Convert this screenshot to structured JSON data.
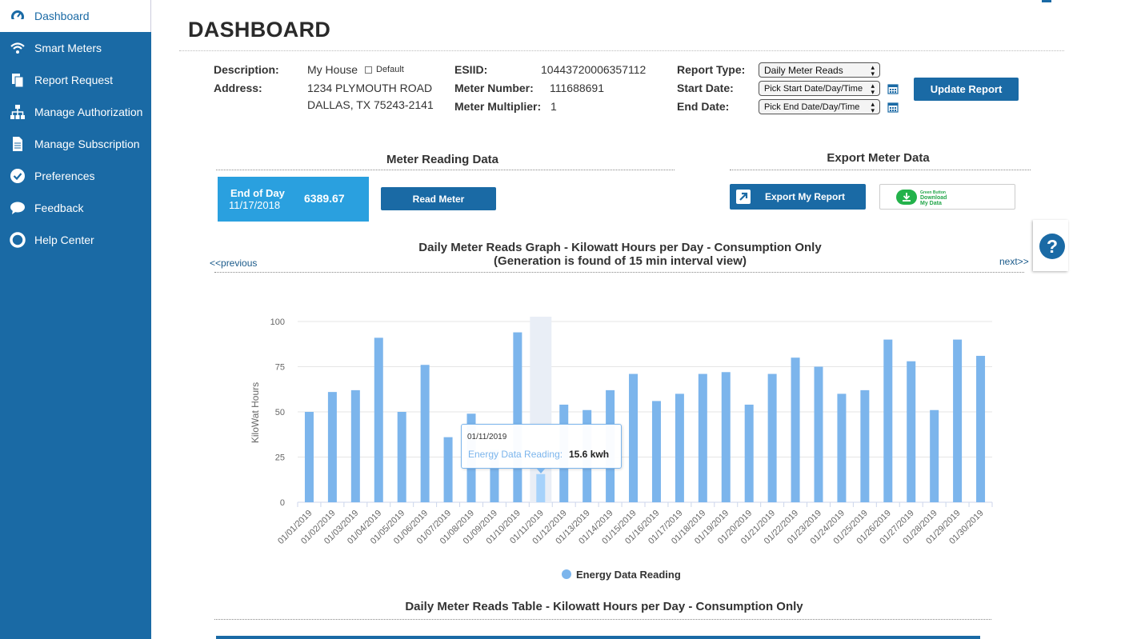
{
  "sidebar": {
    "items": [
      {
        "label": "Dashboard",
        "icon": "dashboard-icon"
      },
      {
        "label": "Smart Meters",
        "icon": "wifi-icon"
      },
      {
        "label": "Report Request",
        "icon": "report-icon"
      },
      {
        "label": "Manage Authorization",
        "icon": "sitemap-icon"
      },
      {
        "label": "Manage Subscription",
        "icon": "document-icon"
      },
      {
        "label": "Preferences",
        "icon": "check-circle-icon"
      },
      {
        "label": "Feedback",
        "icon": "chat-icon"
      },
      {
        "label": "Help Center",
        "icon": "lifebuoy-icon"
      }
    ]
  },
  "header": {
    "title": "DASHBOARD"
  },
  "details": {
    "description_label": "Description:",
    "description_value": "My House",
    "default_label": "Default",
    "address_label": "Address:",
    "address_line1": "1234 PLYMOUTH ROAD",
    "address_line2": "DALLAS, TX 75243-2141",
    "esiid_label": "ESIID:",
    "esiid_value": "10443720006357112",
    "meter_number_label": "Meter Number:",
    "meter_number_value": "111688691",
    "meter_multiplier_label": "Meter Multiplier:",
    "meter_multiplier_value": "1",
    "report_type_label": "Report Type:",
    "report_type_value": "Daily Meter Reads",
    "start_date_label": "Start Date:",
    "start_date_value": "Pick Start Date/Day/Time",
    "end_date_label": "End Date:",
    "end_date_value": "Pick End Date/Day/Time",
    "update_button": "Update Report"
  },
  "meter_reading": {
    "title": "Meter Reading Data",
    "eod_label": "End of Day",
    "eod_date": "11/17/2018",
    "eod_value": "6389.67",
    "read_button": "Read Meter"
  },
  "export": {
    "title": "Export Meter Data",
    "export_button": "Export My Report",
    "green_button_line1": "Green Button",
    "green_button_line2": "Download",
    "green_button_line3": "My Data"
  },
  "graph": {
    "title_line1": "Daily Meter Reads Graph - Kilowatt Hours per Day - Consumption Only",
    "title_line2": "(Generation is found of 15 min interval view)",
    "prev_link": "<<previous",
    "next_link": "next>>",
    "tooltip_date": "01/11/2019",
    "tooltip_series": "Energy Data Reading:",
    "tooltip_value": "15.6 kwh"
  },
  "table": {
    "title": "Daily Meter Reads Table - Kilowatt Hours per Day - Consumption Only"
  },
  "chart_data": {
    "type": "bar",
    "ylabel": "KiloWat Hours",
    "ylim": [
      0,
      100
    ],
    "yticks": [
      "0",
      "25",
      "50",
      "75",
      "100"
    ],
    "grid": true,
    "legend_position": "bottom",
    "highlighted_category": "01/11/2019",
    "categories": [
      "01/01/2019",
      "01/02/2019",
      "01/03/2019",
      "01/04/2019",
      "01/05/2019",
      "01/06/2019",
      "01/07/2019",
      "01/08/2019",
      "01/09/2019",
      "01/10/2019",
      "01/11/2019",
      "01/12/2019",
      "01/13/2019",
      "01/14/2019",
      "01/15/2019",
      "01/16/2019",
      "01/17/2019",
      "01/18/2019",
      "01/19/2019",
      "01/20/2019",
      "01/21/2019",
      "01/22/2019",
      "01/23/2019",
      "01/24/2019",
      "01/25/2019",
      "01/26/2019",
      "01/27/2019",
      "01/28/2019",
      "01/29/2019",
      "01/30/2019"
    ],
    "series": [
      {
        "name": "Energy Data Reading",
        "color": "#7cb5ec",
        "values": [
          50,
          61,
          62,
          91,
          50,
          76,
          36,
          49,
          29,
          94,
          15.6,
          54,
          51,
          62,
          71,
          56,
          60,
          71,
          72,
          54,
          71,
          80,
          75,
          60,
          62,
          90,
          78,
          51,
          90,
          81
        ]
      }
    ]
  }
}
